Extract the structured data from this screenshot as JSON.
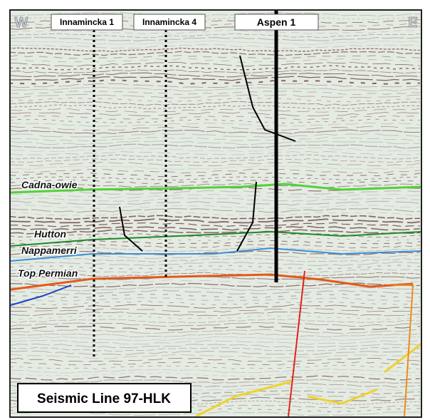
{
  "compass": {
    "west": "W",
    "east": "E"
  },
  "wells": [
    "Innamincka 1",
    "Innamincka 4",
    "Aspen 1"
  ],
  "horizons": [
    "Cadna-owie",
    "Hutton",
    "Nappamerri",
    "Top Permian"
  ],
  "caption": "Seismic Line 97-HLK"
}
